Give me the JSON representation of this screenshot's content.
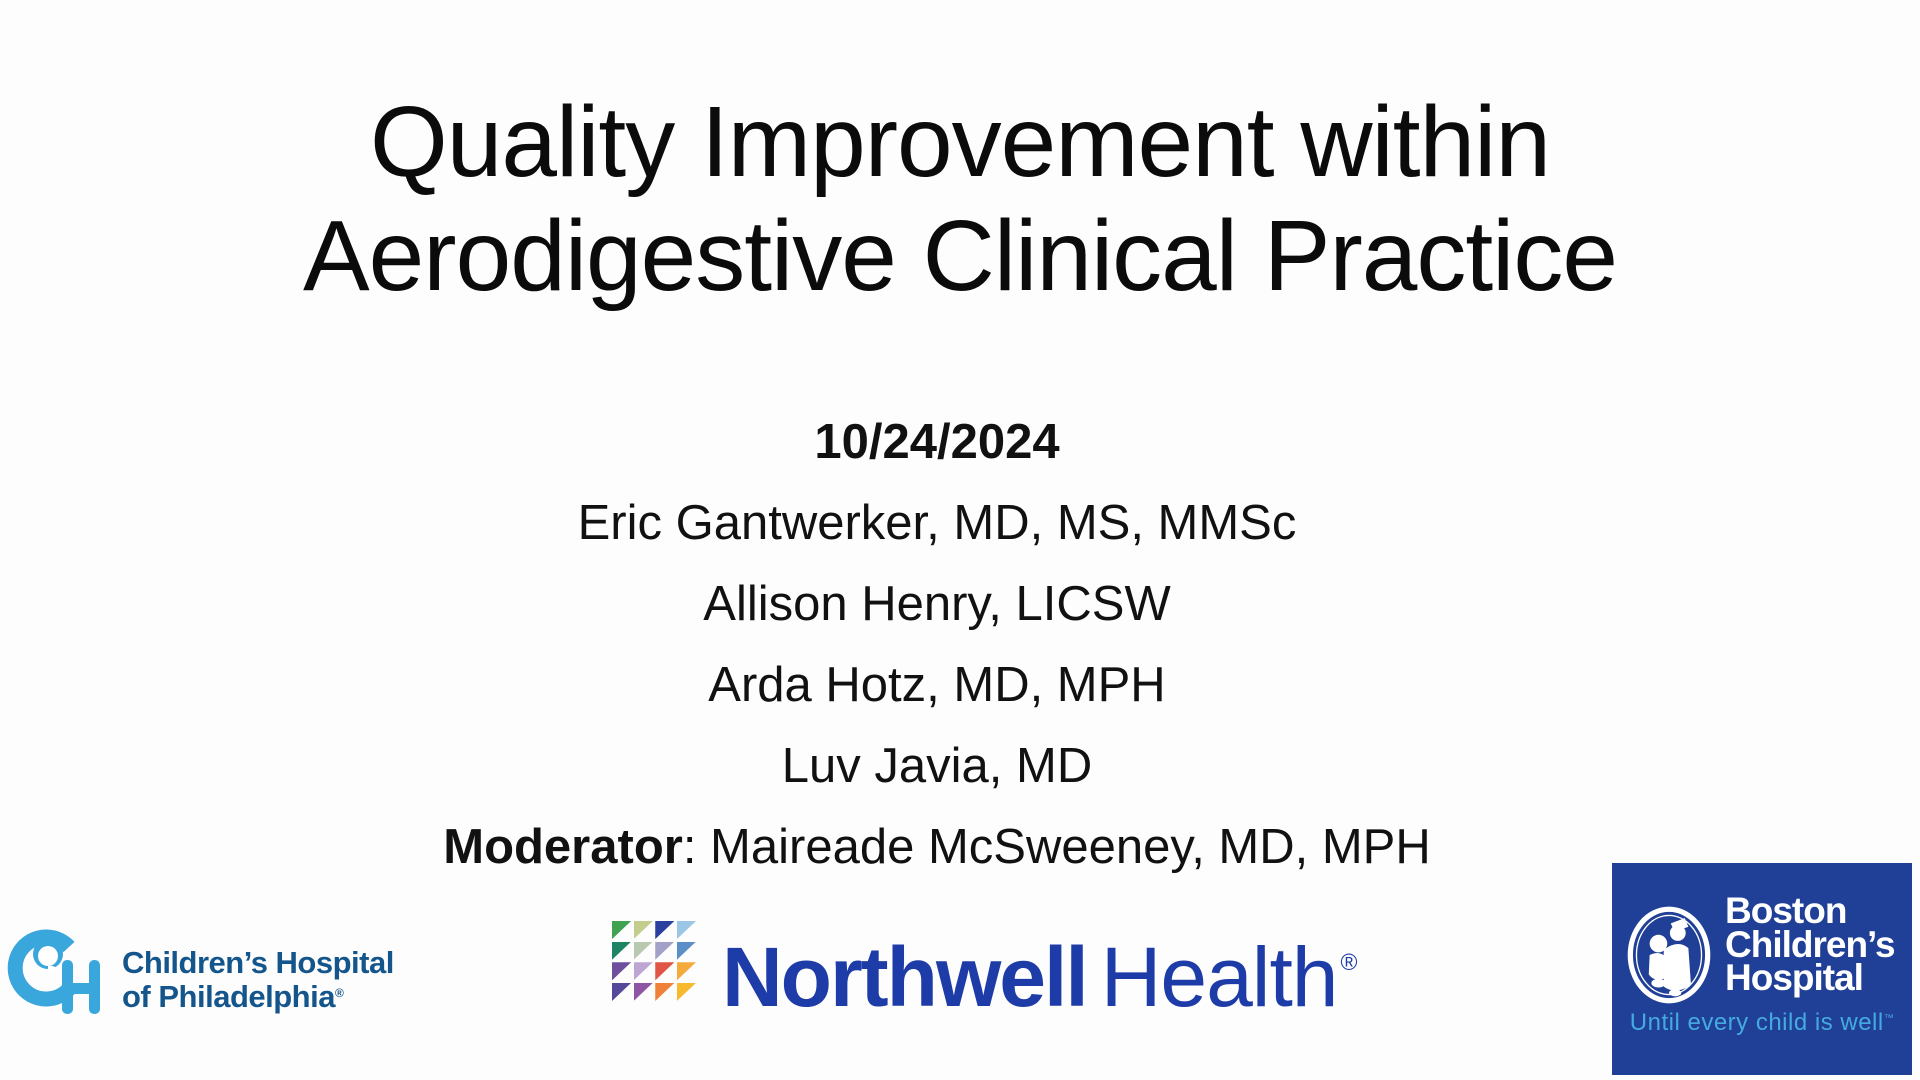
{
  "slide": {
    "title_line1": "Quality Improvement within",
    "title_line2": "Aerodigestive Clinical Practice",
    "date": "10/24/2024",
    "speakers": [
      "Eric Gantwerker, MD, MS, MMSc",
      "Allison Henry, LICSW",
      "Arda Hotz, MD, MPH",
      "Luv Javia, MD"
    ],
    "moderator_label": "Moderator",
    "moderator_rest": ": Maireade McSweeney, MD, MPH"
  },
  "logos": {
    "chop": {
      "line1": "Children’s Hospital",
      "line2": "of Philadelphia",
      "reg_mark": "®",
      "mark_color": "#3aa7dc",
      "text_color": "#14568c"
    },
    "northwell": {
      "word1": "Northwell",
      "word2": "Health",
      "reg_mark": "®",
      "text_color": "#1e3ca8",
      "mosaic_colors": [
        "#3fa352",
        "#c3cd8e",
        "#2a3f9e",
        "#9cc6e6",
        "#1f8464",
        "#b8c9b0",
        "#a2a2c8",
        "#5a8fc8",
        "#6f4f9b",
        "#bda6d4",
        "#e05545",
        "#f5aa3c",
        "#55489b",
        "#8f55a5",
        "#f08138",
        "#f8ba2d"
      ]
    },
    "boston": {
      "line1": "Boston",
      "line2": "Children’s",
      "line3": "Hospital",
      "tagline": "Until every child is well",
      "tagline_mark": "™",
      "bg_color": "#203f96",
      "tagline_color": "#45aadf"
    }
  }
}
